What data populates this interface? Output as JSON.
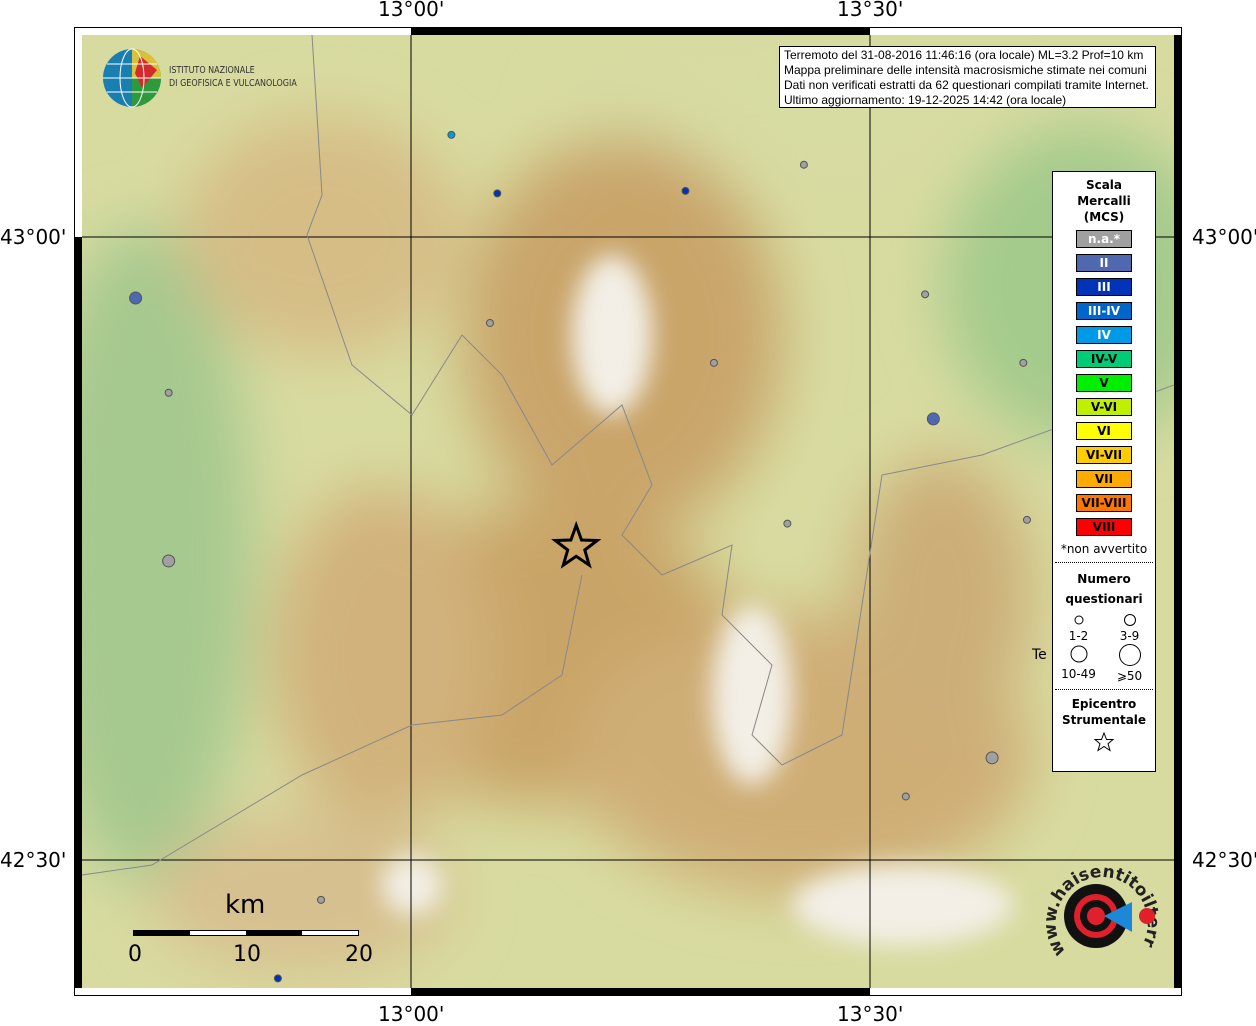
{
  "axes": {
    "lon_ticks": [
      "13°00'",
      "13°30'"
    ],
    "lat_ticks": [
      "43°00'",
      "42°30'"
    ]
  },
  "logo": {
    "line1": "ISTITUTO NAZIONALE",
    "line2": "DI GEOFISICA E VULCANOLOGIA"
  },
  "info": {
    "line1": "Terremoto del 31-08-2016 11:46:16 (ora locale) ML=3.2 Prof=10 km",
    "line2": "Mappa preliminare delle intensità macrosismiche stimate nei comuni",
    "line3": "Dati non verificati estratti da 62 questionari compilati tramite Internet.",
    "line4": "Ultimo aggiornamento: 19-12-2025 14:42 (ora locale)"
  },
  "legend": {
    "title1": "Scala",
    "title2": "Mercalli",
    "title3": "(MCS)",
    "classes": [
      {
        "label": "n.a.*",
        "color": "#a0a0a0",
        "text": "#ffffff"
      },
      {
        "label": "II",
        "color": "#4f68b0",
        "text": "#ffffff"
      },
      {
        "label": "III",
        "color": "#0033b8",
        "text": "#ffffff"
      },
      {
        "label": "III-IV",
        "color": "#0066cc",
        "text": "#ffffff"
      },
      {
        "label": "IV",
        "color": "#0099e6",
        "text": "#ffffff"
      },
      {
        "label": "IV-V",
        "color": "#00cc77",
        "text": "#000000"
      },
      {
        "label": "V",
        "color": "#00ee00",
        "text": "#000000"
      },
      {
        "label": "V-VI",
        "color": "#c0f000",
        "text": "#000000"
      },
      {
        "label": "VI",
        "color": "#ffff00",
        "text": "#000000"
      },
      {
        "label": "VI-VII",
        "color": "#ffcc00",
        "text": "#000000"
      },
      {
        "label": "VII",
        "color": "#ffaa00",
        "text": "#000000"
      },
      {
        "label": "VII-VIII",
        "color": "#ff7700",
        "text": "#000000"
      },
      {
        "label": "VIII",
        "color": "#ff0000",
        "text": "#000000"
      }
    ],
    "na_note": "*non avvertito",
    "count_title1": "Numero",
    "count_title2": "questionari",
    "counts": [
      "1-2",
      "3-9",
      "10-49",
      "⩾50"
    ],
    "epi_title1": "Epicentro",
    "epi_title2": "Strumentale"
  },
  "scalebar": {
    "unit": "km",
    "labels": [
      "0",
      "10",
      "20"
    ]
  },
  "town_label": "Te",
  "badge": {
    "text": "www.haisentitoilterremoto.it"
  },
  "epicenter": {
    "lon": 13.18,
    "lat": 42.751
  },
  "points": [
    {
      "lon": 13.044,
      "lat": 43.082,
      "intensity": "IV",
      "count": "1-2"
    },
    {
      "lon": 13.094,
      "lat": 43.035,
      "intensity": "III",
      "count": "1-2"
    },
    {
      "lon": 13.299,
      "lat": 43.037,
      "intensity": "III",
      "count": "1-2"
    },
    {
      "lon": 13.428,
      "lat": 43.058,
      "intensity": "n.a.*",
      "count": "1-2"
    },
    {
      "lon": 12.7,
      "lat": 42.951,
      "intensity": "II",
      "count": "3-9"
    },
    {
      "lon": 13.086,
      "lat": 42.931,
      "intensity": "n.a.*",
      "count": "1-2"
    },
    {
      "lon": 13.56,
      "lat": 42.954,
      "intensity": "n.a.*",
      "count": "1-2"
    },
    {
      "lon": 13.33,
      "lat": 42.899,
      "intensity": "n.a.*",
      "count": "1-2"
    },
    {
      "lon": 13.667,
      "lat": 42.899,
      "intensity": "n.a.*",
      "count": "1-2"
    },
    {
      "lon": 12.736,
      "lat": 42.875,
      "intensity": "n.a.*",
      "count": "1-2"
    },
    {
      "lon": 13.569,
      "lat": 42.854,
      "intensity": "II",
      "count": "3-9"
    },
    {
      "lon": 13.41,
      "lat": 42.77,
      "intensity": "n.a.*",
      "count": "1-2"
    },
    {
      "lon": 13.671,
      "lat": 42.773,
      "intensity": "n.a.*",
      "count": "1-2"
    },
    {
      "lon": 12.736,
      "lat": 42.74,
      "intensity": "n.a.*",
      "count": "3-9"
    },
    {
      "lon": 13.633,
      "lat": 42.582,
      "intensity": "n.a.*",
      "count": "3-9"
    },
    {
      "lon": 13.539,
      "lat": 42.551,
      "intensity": "n.a.*",
      "count": "1-2"
    },
    {
      "lon": 12.902,
      "lat": 42.468,
      "intensity": "n.a.*",
      "count": "1-2"
    },
    {
      "lon": 12.855,
      "lat": 42.405,
      "intensity": "III",
      "count": "1-2"
    }
  ]
}
